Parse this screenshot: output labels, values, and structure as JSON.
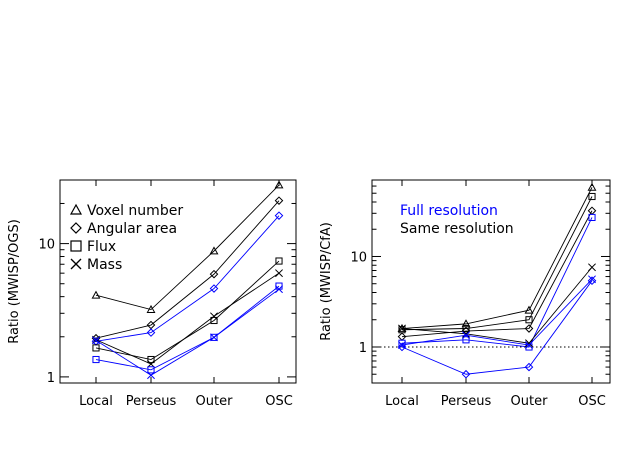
{
  "chart_data": [
    {
      "type": "line",
      "ylabel": "Ratio (MWISP/OGS)",
      "yscale": "log",
      "ylim": [
        0.9,
        30
      ],
      "yticks": [
        1,
        10
      ],
      "categories": [
        "Local",
        "Perseus",
        "Outer",
        "OSC"
      ],
      "legend": {
        "placement": "top-left",
        "entries": [
          {
            "symbol": "triangle",
            "label": "Voxel number"
          },
          {
            "symbol": "diamond",
            "label": "Angular area"
          },
          {
            "symbol": "square",
            "label": "Flux"
          },
          {
            "symbol": "cross",
            "label": "Mass"
          }
        ]
      },
      "series": [
        {
          "symbol": "triangle",
          "resolution": "same",
          "color": "#000000",
          "values": [
            4.1,
            3.2,
            8.8,
            27.5
          ]
        },
        {
          "symbol": "diamond",
          "resolution": "same",
          "color": "#000000",
          "values": [
            1.95,
            2.45,
            5.9,
            21.0
          ]
        },
        {
          "symbol": "diamond",
          "resolution": "full",
          "color": "#0000ff",
          "values": [
            1.85,
            2.15,
            4.6,
            16.2
          ]
        },
        {
          "symbol": "square",
          "resolution": "same",
          "color": "#000000",
          "values": [
            1.65,
            1.35,
            2.65,
            7.4
          ]
        },
        {
          "symbol": "cross",
          "resolution": "same",
          "color": "#000000",
          "values": [
            1.9,
            1.25,
            2.85,
            6.0
          ]
        },
        {
          "symbol": "square",
          "resolution": "full",
          "color": "#0000ff",
          "values": [
            1.35,
            1.13,
            1.98,
            4.8
          ]
        },
        {
          "symbol": "cross",
          "resolution": "full",
          "color": "#0000ff",
          "values": [
            1.88,
            1.03,
            1.98,
            4.55
          ]
        }
      ]
    },
    {
      "type": "line",
      "ylabel": "Ratio (MWISP/CfA)",
      "yscale": "log",
      "ylim": [
        0.4,
        70
      ],
      "yticks": [
        1,
        10
      ],
      "reference_line": {
        "y": 1,
        "style": "dotted"
      },
      "categories": [
        "Local",
        "Perseus",
        "Outer",
        "OSC"
      ],
      "legend": {
        "placement": "top-left",
        "entries": [
          {
            "label": "Full resolution",
            "color": "#0000ff"
          },
          {
            "label": "Same resolution",
            "color": "#000000"
          }
        ]
      },
      "series": [
        {
          "symbol": "triangle",
          "resolution": "same",
          "color": "#000000",
          "values": [
            1.6,
            1.8,
            2.55,
            58
          ]
        },
        {
          "symbol": "square",
          "resolution": "same",
          "color": "#000000",
          "values": [
            1.55,
            1.6,
            2.0,
            46
          ]
        },
        {
          "symbol": "diamond",
          "resolution": "same",
          "color": "#000000",
          "values": [
            1.3,
            1.5,
            1.6,
            32
          ]
        },
        {
          "symbol": "square",
          "resolution": "full",
          "color": "#0000ff",
          "values": [
            1.1,
            1.2,
            1.0,
            27
          ]
        },
        {
          "symbol": "cross",
          "resolution": "same",
          "color": "#000000",
          "values": [
            1.6,
            1.4,
            1.1,
            7.6
          ]
        },
        {
          "symbol": "cross",
          "resolution": "full",
          "color": "#0000ff",
          "values": [
            1.05,
            1.35,
            1.05,
            5.6
          ]
        },
        {
          "symbol": "diamond",
          "resolution": "full",
          "color": "#0000ff",
          "values": [
            1.0,
            0.5,
            0.6,
            5.4
          ]
        }
      ]
    }
  ]
}
